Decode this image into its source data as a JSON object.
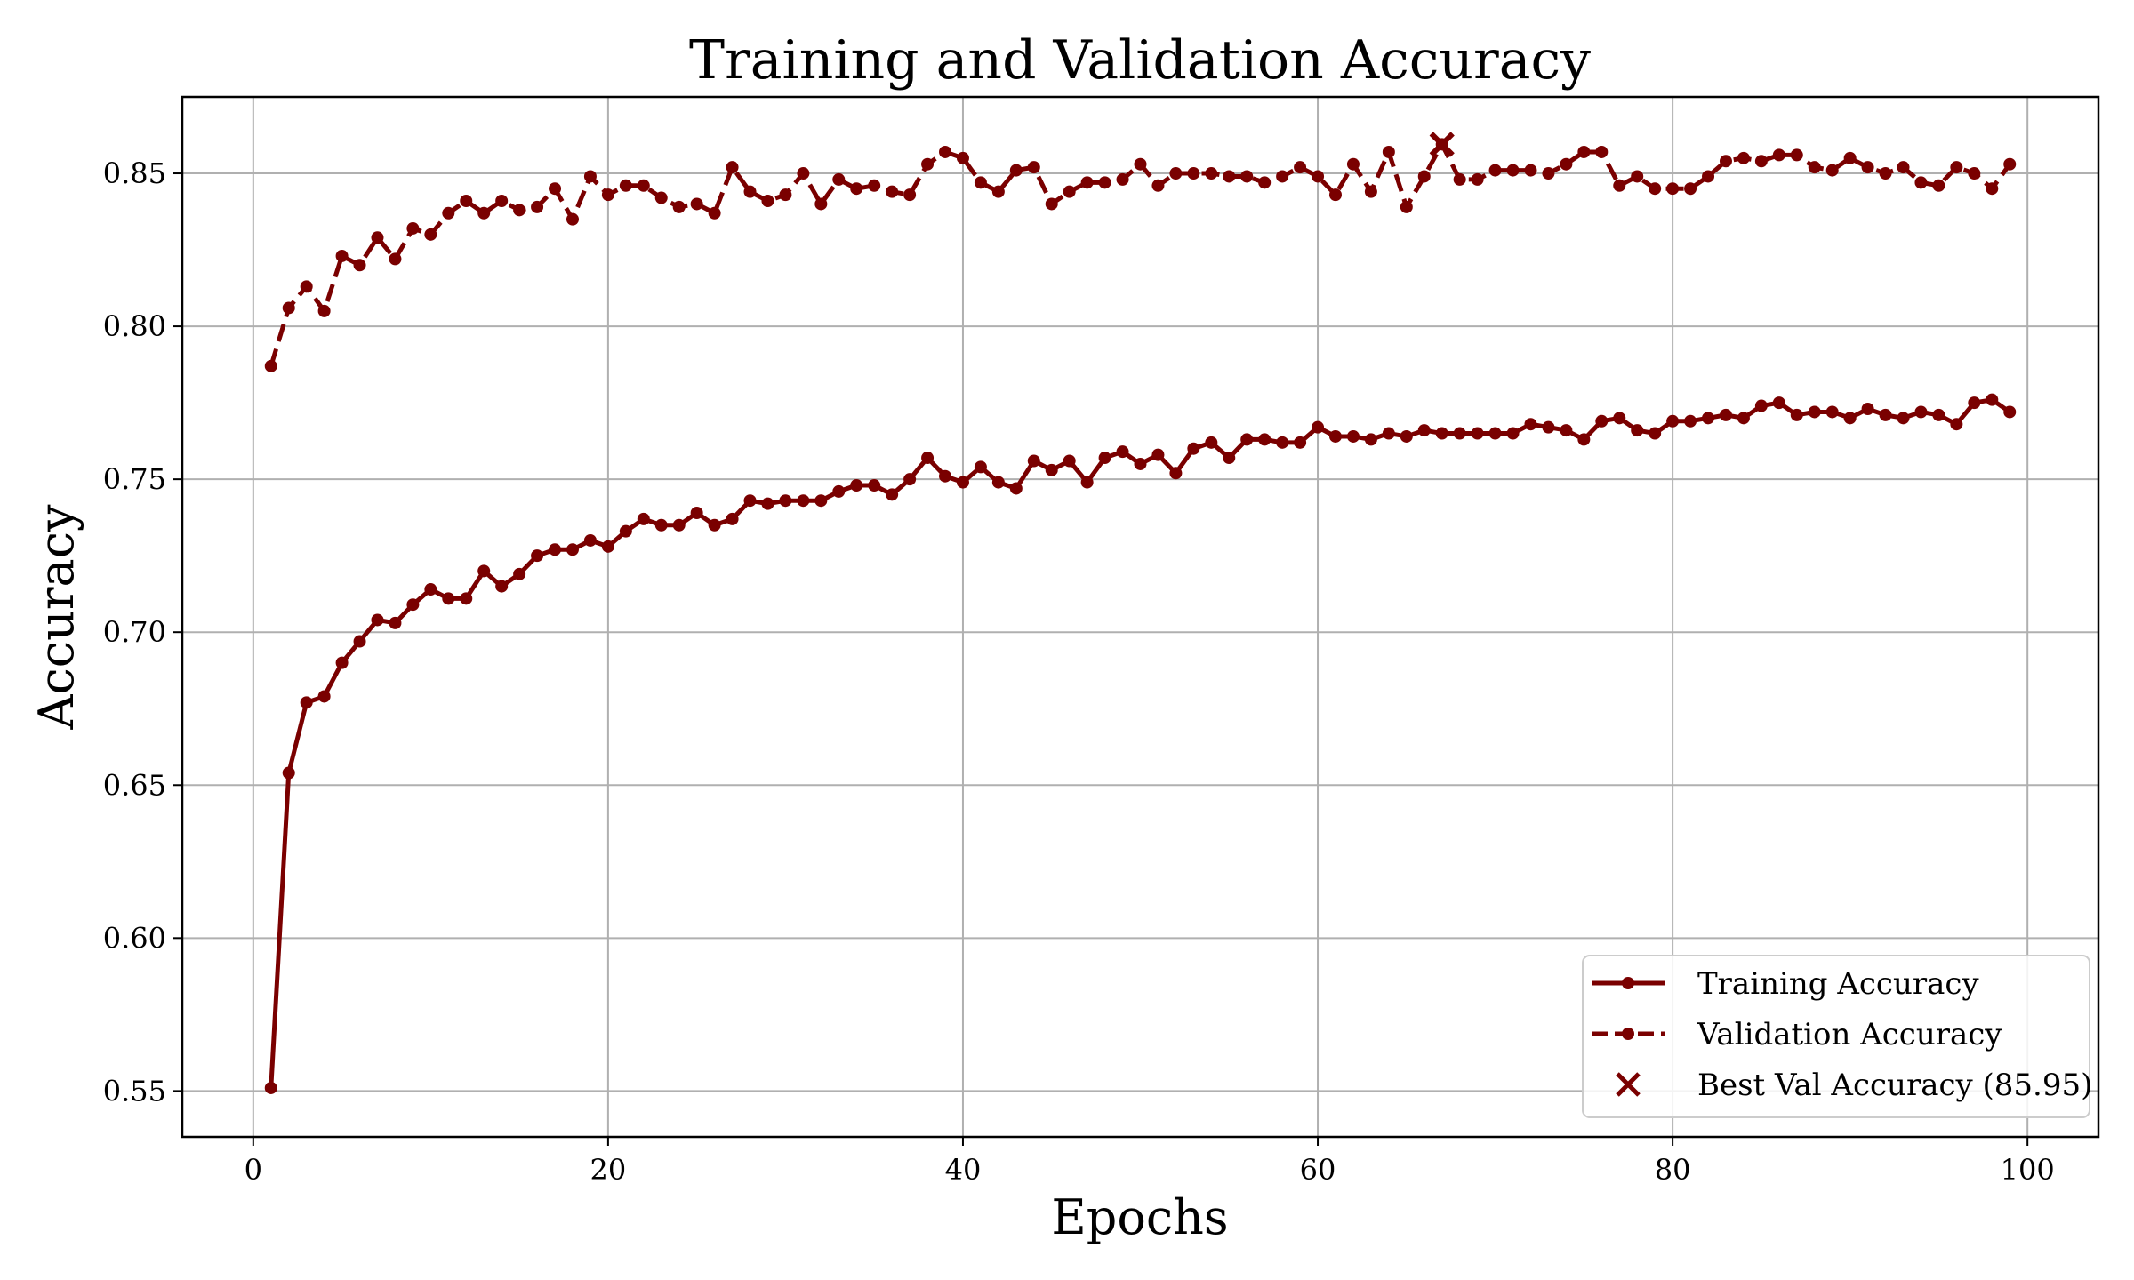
{
  "chart_data": {
    "type": "line",
    "title": "Training and Validation Accuracy",
    "xlabel": "Epochs",
    "ylabel": "Accuracy",
    "xlim": [
      -4,
      104
    ],
    "ylim": [
      0.535,
      0.875
    ],
    "xticks": [
      0,
      20,
      40,
      60,
      80,
      100
    ],
    "yticks": [
      0.55,
      0.6,
      0.65,
      0.7,
      0.75,
      0.8,
      0.85
    ],
    "xtick_labels": [
      "0",
      "20",
      "40",
      "60",
      "80",
      "100"
    ],
    "ytick_labels": [
      "0.55",
      "0.60",
      "0.65",
      "0.70",
      "0.75",
      "0.80",
      "0.85"
    ],
    "grid": true,
    "legend_position": "bottom-right",
    "color": "#7a0000",
    "grid_color": "#b0b0b0",
    "x": [
      1,
      2,
      3,
      4,
      5,
      6,
      7,
      8,
      9,
      10,
      11,
      12,
      13,
      14,
      15,
      16,
      17,
      18,
      19,
      20,
      21,
      22,
      23,
      24,
      25,
      26,
      27,
      28,
      29,
      30,
      31,
      32,
      33,
      34,
      35,
      36,
      37,
      38,
      39,
      40,
      41,
      42,
      43,
      44,
      45,
      46,
      47,
      48,
      49,
      50,
      51,
      52,
      53,
      54,
      55,
      56,
      57,
      58,
      59,
      60,
      61,
      62,
      63,
      64,
      65,
      66,
      67,
      68,
      69,
      70,
      71,
      72,
      73,
      74,
      75,
      76,
      77,
      78,
      79,
      80,
      81,
      82,
      83,
      84,
      85,
      86,
      87,
      88,
      89,
      90,
      91,
      92,
      93,
      94,
      95,
      96,
      97,
      98,
      99
    ],
    "series": [
      {
        "name": "Training Accuracy",
        "style": "solid",
        "values": [
          0.551,
          0.654,
          0.677,
          0.679,
          0.69,
          0.697,
          0.704,
          0.703,
          0.709,
          0.714,
          0.711,
          0.711,
          0.72,
          0.715,
          0.719,
          0.725,
          0.727,
          0.727,
          0.73,
          0.728,
          0.733,
          0.737,
          0.735,
          0.735,
          0.739,
          0.735,
          0.737,
          0.743,
          0.742,
          0.743,
          0.743,
          0.743,
          0.746,
          0.748,
          0.748,
          0.745,
          0.75,
          0.757,
          0.751,
          0.749,
          0.754,
          0.749,
          0.747,
          0.756,
          0.753,
          0.756,
          0.749,
          0.757,
          0.759,
          0.755,
          0.758,
          0.752,
          0.76,
          0.762,
          0.757,
          0.763,
          0.763,
          0.762,
          0.762,
          0.767,
          0.764,
          0.764,
          0.763,
          0.765,
          0.764,
          0.766,
          0.765,
          0.765,
          0.765,
          0.765,
          0.765,
          0.768,
          0.767,
          0.766,
          0.763,
          0.769,
          0.77,
          0.766,
          0.765,
          0.769,
          0.769,
          0.77,
          0.771,
          0.77,
          0.774,
          0.775,
          0.771,
          0.772,
          0.772,
          0.77,
          0.773,
          0.771,
          0.77,
          0.772,
          0.771,
          0.768,
          0.775,
          0.776,
          0.772
        ]
      },
      {
        "name": "Validation Accuracy",
        "style": "dashed",
        "values": [
          0.787,
          0.806,
          0.813,
          0.805,
          0.823,
          0.82,
          0.829,
          0.822,
          0.832,
          0.83,
          0.837,
          0.841,
          0.837,
          0.841,
          0.838,
          0.839,
          0.845,
          0.835,
          0.849,
          0.843,
          0.846,
          0.846,
          0.842,
          0.839,
          0.84,
          0.837,
          0.852,
          0.844,
          0.841,
          0.843,
          0.85,
          0.84,
          0.848,
          0.845,
          0.846,
          0.844,
          0.843,
          0.853,
          0.857,
          0.855,
          0.847,
          0.844,
          0.851,
          0.852,
          0.84,
          0.844,
          0.847,
          0.847,
          0.848,
          0.853,
          0.846,
          0.85,
          0.85,
          0.85,
          0.849,
          0.849,
          0.847,
          0.849,
          0.852,
          0.849,
          0.843,
          0.853,
          0.844,
          0.857,
          0.839,
          0.849,
          0.8595,
          0.848,
          0.848,
          0.851,
          0.851,
          0.851,
          0.85,
          0.853,
          0.857,
          0.857,
          0.846,
          0.849,
          0.845,
          0.845,
          0.845,
          0.849,
          0.854,
          0.855,
          0.854,
          0.856,
          0.856,
          0.852,
          0.851,
          0.855,
          0.852,
          0.85,
          0.852,
          0.847,
          0.846,
          0.852,
          0.85,
          0.845,
          0.853
        ]
      }
    ],
    "best": {
      "label": "Best Val Accuracy (85.95)",
      "x": 67,
      "y": 0.8595
    }
  }
}
